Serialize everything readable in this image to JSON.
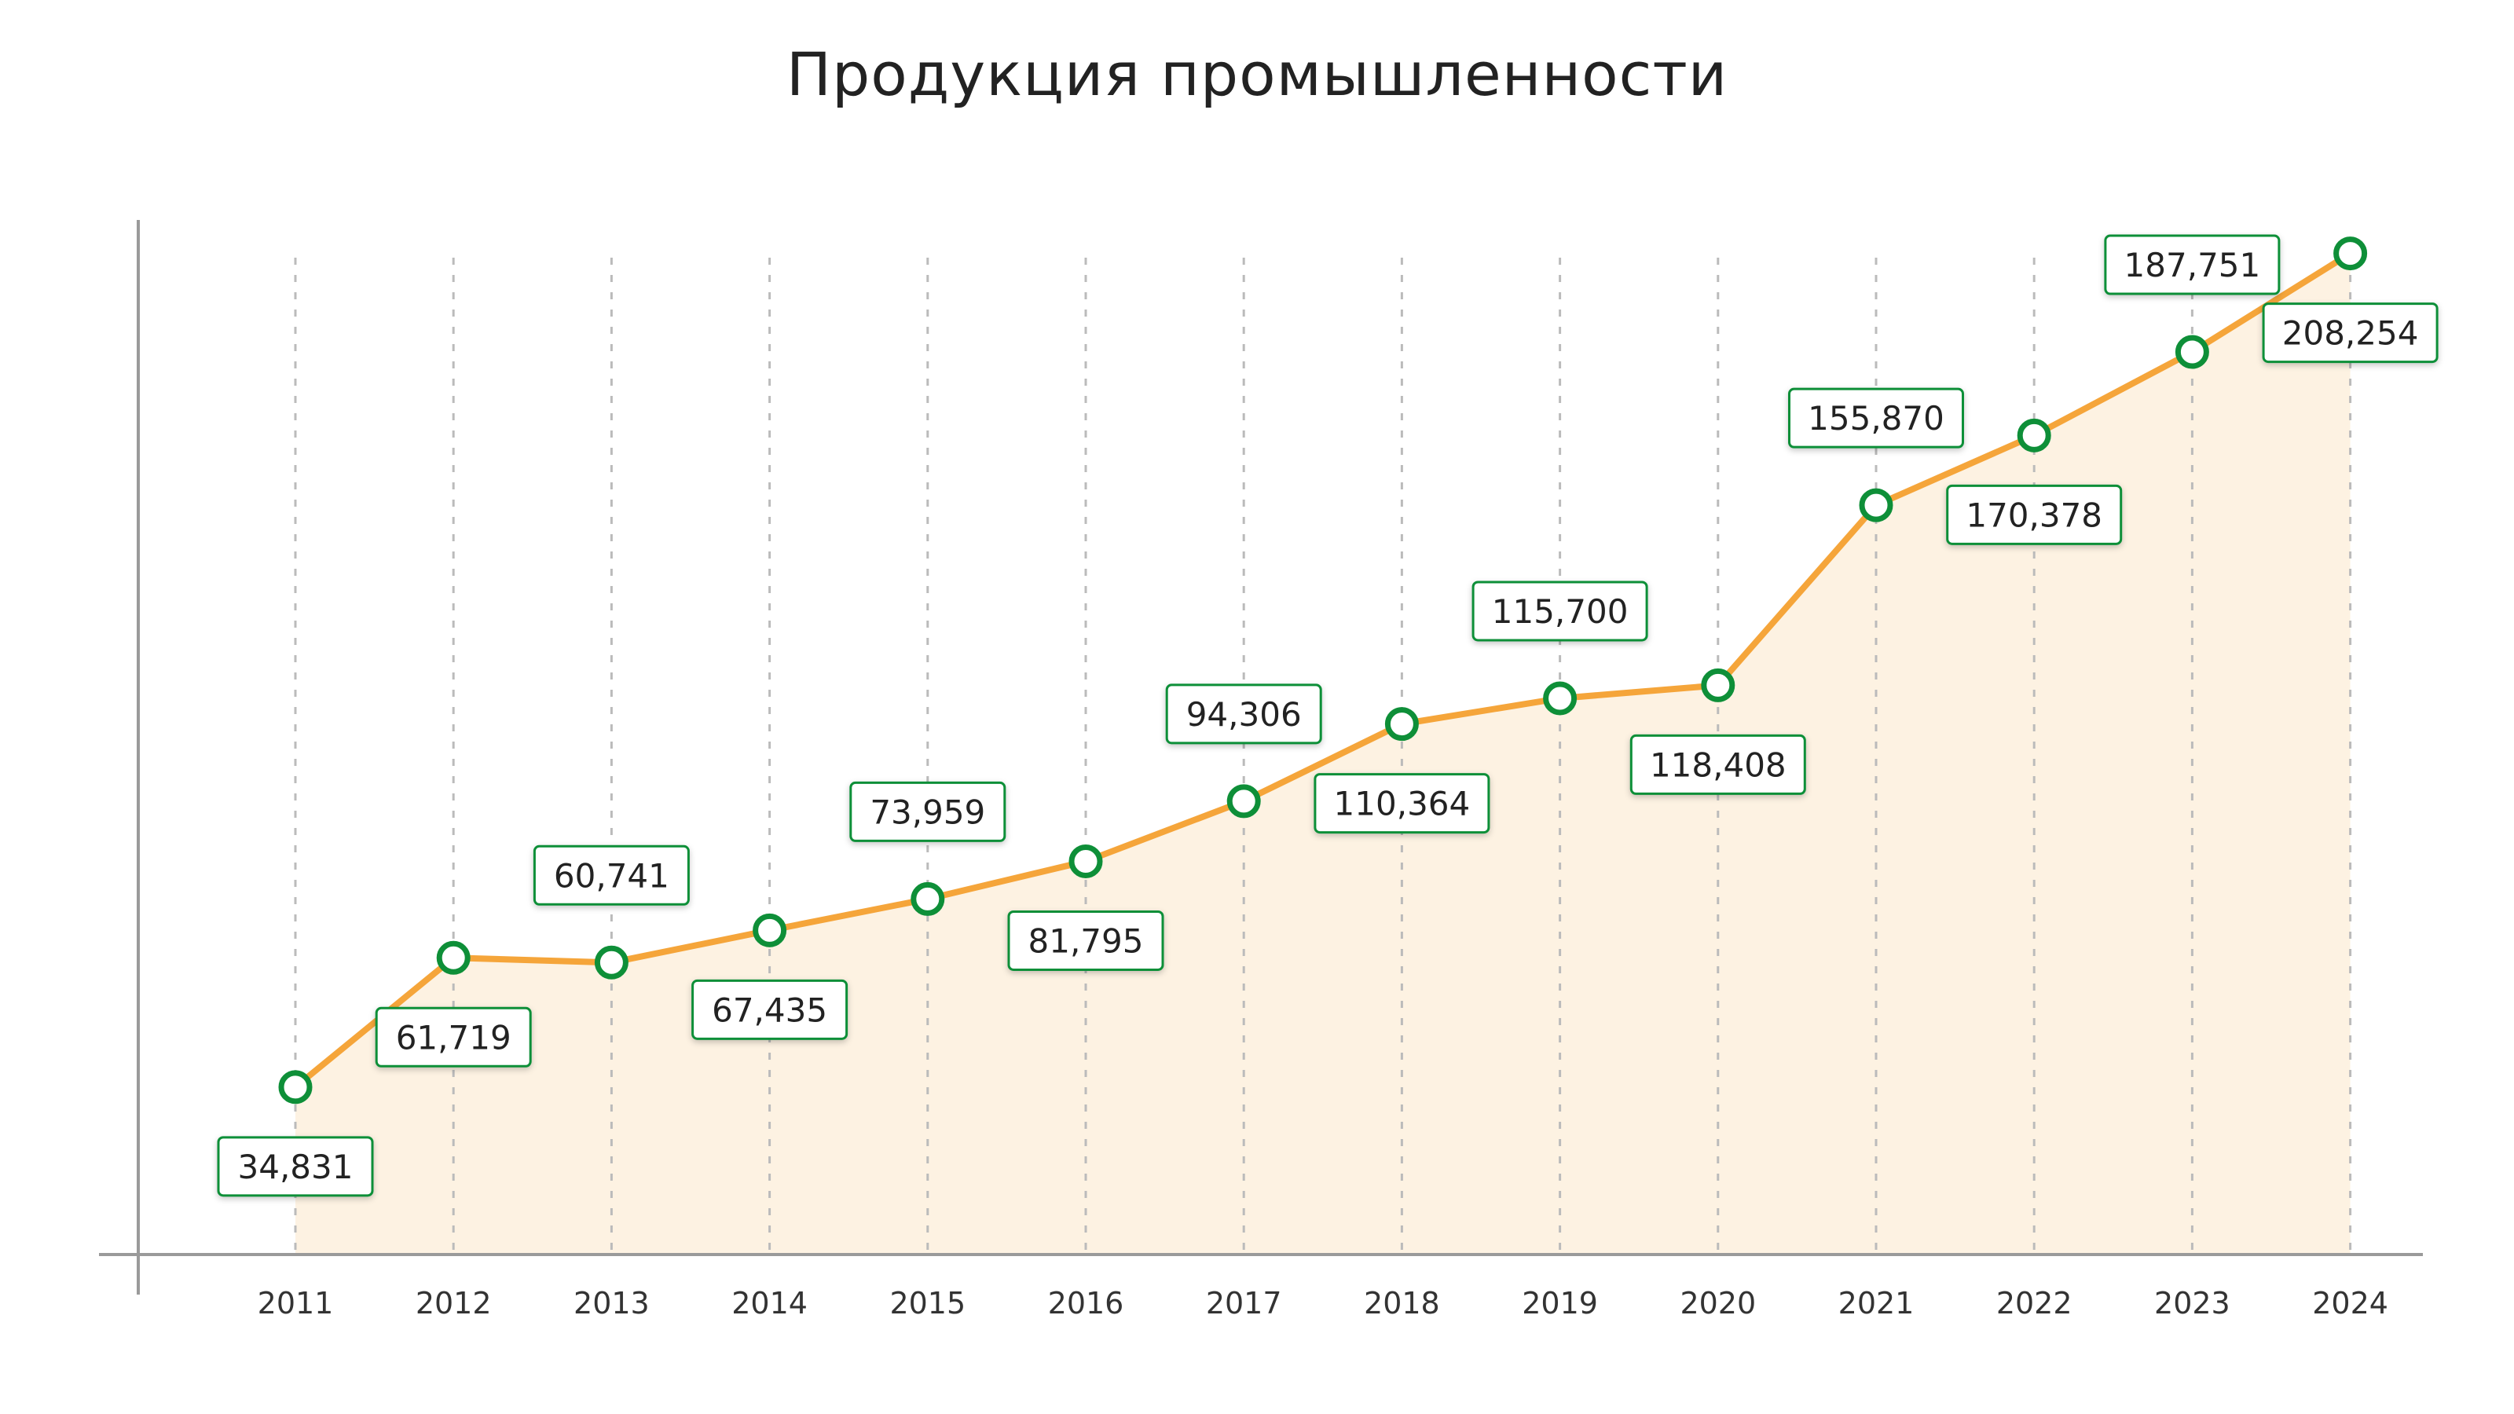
{
  "chart_data": {
    "type": "area",
    "title": "Продукция промышленности",
    "xlabel": "",
    "ylabel": "",
    "categories": [
      "2011",
      "2012",
      "2013",
      "2014",
      "2015",
      "2016",
      "2017",
      "2018",
      "2019",
      "2020",
      "2021",
      "2022",
      "2023",
      "2024"
    ],
    "values": [
      34831,
      61719,
      60741,
      67435,
      73959,
      81795,
      94306,
      110364,
      115700,
      118408,
      155870,
      170378,
      187751,
      208254
    ],
    "value_labels": [
      "34,831",
      "61,719",
      "60,741",
      "67,435",
      "73,959",
      "81,795",
      "94,306",
      "110,364",
      "115,700",
      "118,408",
      "155,870",
      "170,378",
      "187,751",
      "208,254"
    ],
    "label_positions": [
      "below",
      "below",
      "above",
      "below",
      "above",
      "below",
      "above",
      "below",
      "above",
      "below",
      "above",
      "below",
      "above",
      "below"
    ],
    "ylim": [
      0,
      209000
    ],
    "grid": "vertical-dashed",
    "legend": "none",
    "colors": {
      "line": "#F5A53A",
      "area": "#FDF2E2",
      "marker_stroke": "#0E8F38",
      "marker_fill": "#FFFFFF",
      "label_border": "#0E8F38",
      "grid": "#BBBBBB",
      "axis": "#9A9A9A"
    }
  }
}
